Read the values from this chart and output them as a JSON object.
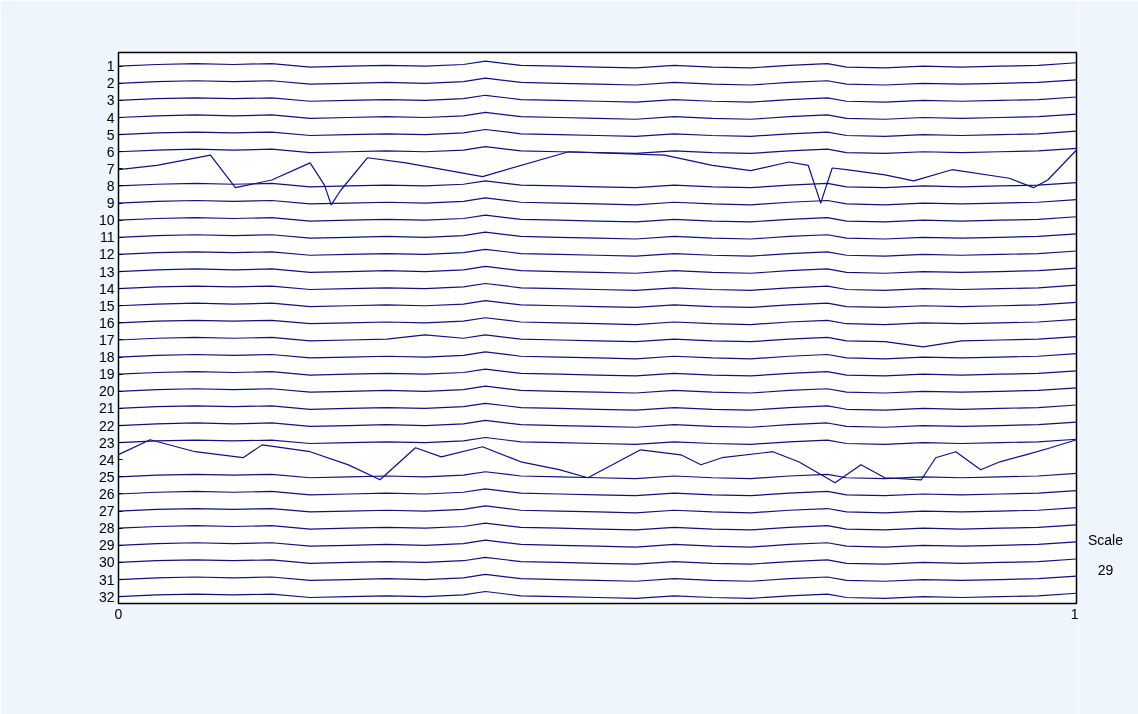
{
  "chart_data": {
    "type": "line",
    "color": "#10107f",
    "line_style": "solid",
    "xlim": [
      0,
      1
    ],
    "xticks": [
      0,
      1
    ],
    "ylim": [
      32.4,
      0.2
    ],
    "yticks": [
      1,
      2,
      3,
      4,
      5,
      6,
      7,
      8,
      9,
      10,
      11,
      12,
      13,
      14,
      15,
      16,
      17,
      18,
      19,
      20,
      21,
      22,
      23,
      24,
      25,
      26,
      27,
      28,
      29,
      30,
      31,
      32
    ],
    "annotations": [
      "Scale",
      "29"
    ],
    "x": [
      0,
      0.04,
      0.08,
      0.12,
      0.16,
      0.2,
      0.24,
      0.28,
      0.32,
      0.36,
      0.383,
      0.42,
      0.46,
      0.5,
      0.54,
      0.58,
      0.62,
      0.66,
      0.7,
      0.74,
      0.76,
      0.8,
      0.84,
      0.88,
      0.92,
      0.96,
      1
    ],
    "series": [
      {
        "values": [
          1,
          0.9,
          0.85,
          0.9,
          0.85,
          1.05,
          1,
          0.95,
          1,
          0.9,
          0.7,
          0.95,
          1,
          1.05,
          1.1,
          0.95,
          1.05,
          1.1,
          0.95,
          0.85,
          1.05,
          1.1,
          1,
          1.05,
          1,
          0.95,
          0.8
        ]
      },
      {
        "values": [
          2,
          1.9,
          1.85,
          1.9,
          1.85,
          2.05,
          2,
          1.95,
          2,
          1.9,
          1.7,
          1.95,
          2,
          2.05,
          2.1,
          1.95,
          2.05,
          2.1,
          1.95,
          1.85,
          2.05,
          2.1,
          2,
          2.05,
          2,
          1.95,
          1.8
        ]
      },
      {
        "values": [
          3,
          2.9,
          2.85,
          2.9,
          2.85,
          3.05,
          3,
          2.95,
          3,
          2.9,
          2.7,
          2.95,
          3,
          3.05,
          3.1,
          2.95,
          3.05,
          3.1,
          2.95,
          2.85,
          3.05,
          3.1,
          3,
          3.05,
          3,
          2.95,
          2.8
        ]
      },
      {
        "values": [
          4,
          3.9,
          3.85,
          3.9,
          3.85,
          4.05,
          4,
          3.95,
          4,
          3.9,
          3.7,
          3.95,
          4,
          4.05,
          4.1,
          3.95,
          4.05,
          4.1,
          3.95,
          3.85,
          4.05,
          4.1,
          4,
          4.05,
          4,
          3.95,
          3.8
        ]
      },
      {
        "values": [
          5,
          4.9,
          4.85,
          4.9,
          4.85,
          5.05,
          5,
          4.95,
          5,
          4.9,
          4.7,
          4.95,
          5,
          5.05,
          5.1,
          4.95,
          5.05,
          5.1,
          4.95,
          4.85,
          5.05,
          5.1,
          5,
          5.05,
          5,
          4.95,
          4.8
        ]
      },
      {
        "values": [
          6,
          5.9,
          5.85,
          5.9,
          5.85,
          6.05,
          6,
          5.95,
          6,
          5.9,
          5.7,
          5.95,
          6,
          6.05,
          6.1,
          5.95,
          6.05,
          6.1,
          5.95,
          5.85,
          6.05,
          6.1,
          6,
          6.05,
          6,
          5.95,
          5.8
        ]
      },
      {
        "x": [
          0,
          0.04,
          0.096,
          0.122,
          0.16,
          0.2,
          0.215,
          0.222,
          0.232,
          0.26,
          0.3,
          0.38,
          0.47,
          0.57,
          0.62,
          0.66,
          0.7,
          0.72,
          0.733,
          0.745,
          0.76,
          0.8,
          0.83,
          0.87,
          0.93,
          0.955,
          0.97,
          1
        ],
        "values": [
          7.05,
          6.8,
          6.2,
          8.1,
          7.65,
          6.65,
          7.95,
          9.1,
          8.25,
          6.35,
          6.65,
          7.45,
          6.0,
          6.2,
          6.8,
          7.1,
          6.6,
          6.8,
          9.0,
          6.95,
          7.05,
          7.35,
          7.7,
          7.05,
          7.55,
          8.1,
          7.65,
          5.9
        ]
      },
      {
        "values": [
          8,
          7.9,
          7.85,
          7.9,
          7.85,
          8.05,
          8,
          7.95,
          8,
          7.9,
          7.7,
          7.95,
          8,
          8.05,
          8.1,
          7.95,
          8.05,
          8.1,
          7.95,
          7.85,
          8.05,
          8.1,
          8,
          8.05,
          8,
          7.95,
          7.8
        ]
      },
      {
        "values": [
          9,
          8.9,
          8.85,
          8.9,
          8.85,
          9.05,
          9,
          8.95,
          9,
          8.9,
          8.7,
          8.95,
          9,
          9.05,
          9.1,
          8.95,
          9.05,
          9.1,
          8.95,
          8.85,
          9.05,
          9.1,
          9,
          9.05,
          9,
          8.95,
          8.8
        ]
      },
      {
        "values": [
          10,
          9.9,
          9.85,
          9.9,
          9.85,
          10.05,
          10,
          9.95,
          10,
          9.9,
          9.7,
          9.95,
          10,
          10.05,
          10.1,
          9.95,
          10.05,
          10.1,
          9.95,
          9.85,
          10.05,
          10.1,
          10,
          10.05,
          10,
          9.95,
          9.8
        ]
      },
      {
        "values": [
          11,
          10.9,
          10.85,
          10.9,
          10.85,
          11.05,
          11,
          10.95,
          11,
          10.9,
          10.7,
          10.95,
          11,
          11.05,
          11.1,
          10.95,
          11.05,
          11.1,
          10.95,
          10.85,
          11.05,
          11.1,
          11,
          11.05,
          11,
          10.95,
          10.8
        ]
      },
      {
        "values": [
          12,
          11.9,
          11.85,
          11.9,
          11.85,
          12.05,
          12,
          11.95,
          12,
          11.9,
          11.7,
          11.95,
          12,
          12.05,
          12.1,
          11.95,
          12.05,
          12.1,
          11.95,
          11.85,
          12.05,
          12.1,
          12,
          12.05,
          12,
          11.95,
          11.8
        ]
      },
      {
        "values": [
          13,
          12.9,
          12.85,
          12.9,
          12.85,
          13.05,
          13,
          12.95,
          13,
          12.9,
          12.7,
          12.95,
          13,
          13.05,
          13.1,
          12.95,
          13.05,
          13.1,
          12.95,
          12.85,
          13.05,
          13.1,
          13,
          13.05,
          13,
          12.95,
          12.8
        ]
      },
      {
        "values": [
          14,
          13.9,
          13.85,
          13.9,
          13.85,
          14.05,
          14,
          13.95,
          14,
          13.9,
          13.7,
          13.95,
          14,
          14.05,
          14.1,
          13.95,
          14.05,
          14.1,
          13.95,
          13.85,
          14.05,
          14.1,
          14,
          14.05,
          14,
          13.95,
          13.8
        ]
      },
      {
        "values": [
          15,
          14.9,
          14.85,
          14.9,
          14.85,
          15.05,
          15,
          14.95,
          15,
          14.9,
          14.7,
          14.95,
          15,
          15.05,
          15.1,
          14.95,
          15.05,
          15.1,
          14.95,
          14.85,
          15.05,
          15.1,
          15,
          15.05,
          15,
          14.95,
          14.8
        ]
      },
      {
        "values": [
          16,
          15.9,
          15.85,
          15.9,
          15.85,
          16.05,
          16,
          15.95,
          16,
          15.9,
          15.7,
          15.95,
          16,
          16.05,
          16.1,
          15.95,
          16.05,
          16.1,
          15.95,
          15.85,
          16.05,
          16.1,
          16,
          16.05,
          16,
          15.95,
          15.8
        ]
      },
      {
        "values": [
          17,
          16.9,
          16.85,
          16.9,
          16.85,
          17.05,
          17,
          16.95,
          16.7,
          16.9,
          16.7,
          16.95,
          17,
          17.05,
          17.1,
          16.95,
          17.05,
          17.1,
          16.95,
          16.85,
          17.05,
          17.1,
          17.4,
          17.05,
          17,
          16.95,
          16.8
        ]
      },
      {
        "values": [
          18,
          17.9,
          17.85,
          17.9,
          17.85,
          18.05,
          18,
          17.95,
          18,
          17.9,
          17.7,
          17.95,
          18,
          18.05,
          18.1,
          17.95,
          18.05,
          18.1,
          17.95,
          17.85,
          18.05,
          18.1,
          18,
          18.05,
          18,
          17.95,
          17.8
        ]
      },
      {
        "values": [
          19,
          18.9,
          18.85,
          18.9,
          18.85,
          19.05,
          19,
          18.95,
          19,
          18.9,
          18.7,
          18.95,
          19,
          19.05,
          19.1,
          18.95,
          19.05,
          19.1,
          18.95,
          18.85,
          19.05,
          19.1,
          19,
          19.05,
          19,
          18.95,
          18.8
        ]
      },
      {
        "values": [
          20,
          19.9,
          19.85,
          19.9,
          19.85,
          20.05,
          20,
          19.95,
          20,
          19.9,
          19.7,
          19.95,
          20,
          20.05,
          20.1,
          19.95,
          20.05,
          20.1,
          19.95,
          19.85,
          20.05,
          20.1,
          20,
          20.05,
          20,
          19.95,
          19.8
        ]
      },
      {
        "values": [
          21,
          20.9,
          20.85,
          20.9,
          20.85,
          21.05,
          21,
          20.95,
          21,
          20.9,
          20.7,
          20.95,
          21,
          21.05,
          21.1,
          20.95,
          21.05,
          21.1,
          20.95,
          20.85,
          21.05,
          21.1,
          21,
          21.05,
          21,
          20.95,
          20.8
        ]
      },
      {
        "values": [
          22,
          21.9,
          21.85,
          21.9,
          21.85,
          22.05,
          22,
          21.95,
          22,
          21.9,
          21.7,
          21.95,
          22,
          22.05,
          22.1,
          21.95,
          22.05,
          22.1,
          21.95,
          21.85,
          22.05,
          22.1,
          22,
          22.05,
          22,
          21.95,
          21.8
        ]
      },
      {
        "values": [
          23,
          22.9,
          22.85,
          22.9,
          22.85,
          23.05,
          23,
          22.95,
          23,
          22.9,
          22.7,
          22.95,
          23,
          23.05,
          23.1,
          22.95,
          23.05,
          23.1,
          22.95,
          22.85,
          23.05,
          23.1,
          23,
          23.05,
          23,
          22.95,
          22.8
        ]
      },
      {
        "x": [
          0,
          0.033,
          0.08,
          0.13,
          0.15,
          0.2,
          0.24,
          0.273,
          0.31,
          0.337,
          0.38,
          0.42,
          0.46,
          0.49,
          0.545,
          0.587,
          0.608,
          0.63,
          0.683,
          0.71,
          0.748,
          0.775,
          0.8,
          0.838,
          0.853,
          0.874,
          0.9,
          0.92,
          0.947,
          0.973,
          1
        ],
        "values": [
          23.7,
          22.83,
          23.53,
          23.88,
          23.13,
          23.53,
          24.3,
          25.17,
          23.3,
          23.83,
          23.24,
          24.12,
          24.58,
          25.05,
          23.42,
          23.71,
          24.29,
          23.88,
          23.53,
          24.12,
          25.34,
          24.29,
          25.05,
          25.17,
          23.88,
          23.53,
          24.58,
          24.12,
          23.71,
          23.3,
          22.83
        ]
      },
      {
        "values": [
          25,
          24.9,
          24.85,
          24.9,
          24.85,
          25.05,
          25,
          24.95,
          25,
          24.9,
          24.7,
          24.95,
          25,
          25.05,
          25.1,
          24.95,
          25.05,
          25.1,
          24.95,
          24.85,
          25.05,
          25.1,
          25,
          25.05,
          25,
          24.95,
          24.8
        ]
      },
      {
        "values": [
          26,
          25.9,
          25.85,
          25.9,
          25.85,
          26.05,
          26,
          25.95,
          26,
          25.9,
          25.7,
          25.95,
          26,
          26.05,
          26.1,
          25.95,
          26.05,
          26.1,
          25.95,
          25.85,
          26.05,
          26.1,
          26,
          26.05,
          26,
          25.95,
          25.8
        ]
      },
      {
        "values": [
          27,
          26.9,
          26.85,
          26.9,
          26.85,
          27.05,
          27,
          26.95,
          27,
          26.9,
          26.7,
          26.95,
          27,
          27.05,
          27.1,
          26.95,
          27.05,
          27.1,
          26.95,
          26.85,
          27.05,
          27.1,
          27,
          27.05,
          27,
          26.95,
          26.8
        ]
      },
      {
        "values": [
          28,
          27.9,
          27.85,
          27.9,
          27.85,
          28.05,
          28,
          27.95,
          28,
          27.9,
          27.7,
          27.95,
          28,
          28.05,
          28.1,
          27.95,
          28.05,
          28.1,
          27.95,
          27.85,
          28.05,
          28.1,
          28,
          28.05,
          28,
          27.95,
          27.8
        ]
      },
      {
        "values": [
          29,
          28.9,
          28.85,
          28.9,
          28.85,
          29.05,
          29,
          28.95,
          29,
          28.9,
          28.7,
          28.95,
          29,
          29.05,
          29.1,
          28.95,
          29.05,
          29.1,
          28.95,
          28.85,
          29.05,
          29.1,
          29,
          29.05,
          29,
          28.95,
          28.8
        ]
      },
      {
        "values": [
          30,
          29.9,
          29.85,
          29.9,
          29.85,
          30.05,
          30,
          29.95,
          30,
          29.9,
          29.7,
          29.95,
          30,
          30.05,
          30.1,
          29.95,
          30.05,
          30.1,
          29.95,
          29.85,
          30.05,
          30.1,
          30,
          30.05,
          30,
          29.95,
          29.8
        ]
      },
      {
        "values": [
          31,
          30.9,
          30.85,
          30.9,
          30.85,
          31.05,
          31,
          30.95,
          31,
          30.9,
          30.7,
          30.95,
          31,
          31.05,
          31.1,
          30.95,
          31.05,
          31.1,
          30.95,
          30.85,
          31.05,
          31.1,
          31,
          31.05,
          31,
          30.95,
          30.8
        ]
      },
      {
        "values": [
          32,
          31.9,
          31.85,
          31.9,
          31.85,
          32.05,
          32,
          31.95,
          32,
          31.9,
          31.7,
          31.95,
          32,
          32.05,
          32.1,
          31.95,
          32.05,
          32.1,
          31.95,
          31.85,
          32.05,
          32.1,
          32,
          32.05,
          32,
          31.95,
          31.8
        ]
      }
    ]
  }
}
